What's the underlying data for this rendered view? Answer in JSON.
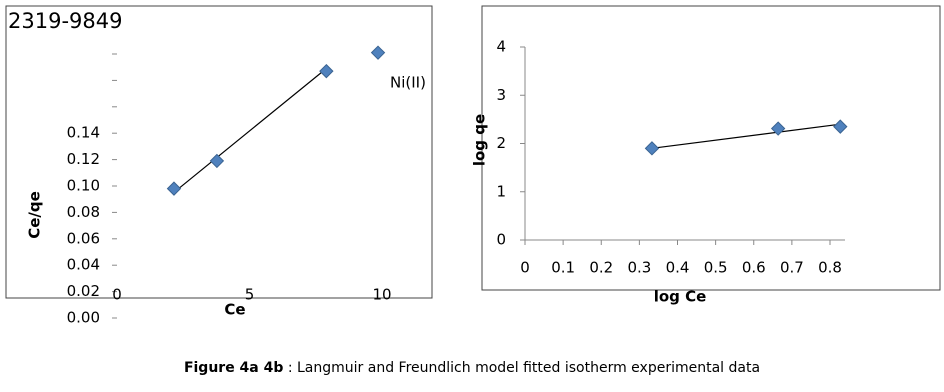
{
  "page": {
    "issn": "2319-9849",
    "caption_bold": "Figure 4a 4b",
    "caption": " : Langmuir  and Freundlich model fitted isotherm experimental data"
  },
  "chart_data": [
    {
      "type": "scatter",
      "x_label": "Ce",
      "y_label": "Ce/qe",
      "series": [
        {
          "name": "Ni(II)",
          "color": "#4f81bd",
          "x": [
            2.15,
            3.77,
            7.9,
            9.85
          ],
          "values": [
            0.098,
            0.119,
            0.187,
            0.201
          ]
        }
      ],
      "trendline": {
        "x": [
          2.2,
          7.9
        ],
        "values": [
          0.096,
          0.189
        ]
      },
      "xlim": [
        0,
        10
      ],
      "xticks": [
        0,
        5,
        10
      ],
      "ylim": [
        0,
        0.2
      ],
      "yticks": [
        {
          "value": 0,
          "label": "0.00"
        },
        {
          "value": 0.02,
          "label": "0.02"
        },
        {
          "value": 0.04,
          "label": "0.04"
        },
        {
          "value": 0.06,
          "label": "0.06"
        },
        {
          "value": 0.08,
          "label": "0.08"
        },
        {
          "value": 0.1,
          "label": "0.10"
        },
        {
          "value": 0.12,
          "label": "0.12"
        },
        {
          "value": 0.14,
          "label": "0.14"
        }
      ],
      "minor_yticks": [
        0.16,
        0.18,
        0.2
      ],
      "axis_lines": false
    },
    {
      "type": "scatter",
      "x_label": "log Ce",
      "y_label": "log qe",
      "series": [
        {
          "color": "#4f81bd",
          "x": [
            0.333,
            0.664,
            0.827
          ],
          "values": [
            1.9,
            2.31,
            2.35
          ]
        }
      ],
      "trendline": {
        "x": [
          0.333,
          0.827
        ],
        "values": [
          1.9,
          2.4
        ]
      },
      "xlim": [
        0,
        0.8
      ],
      "xticks": [
        0,
        0.1,
        0.2,
        0.3,
        0.4,
        0.5,
        0.6,
        0.7,
        0.8
      ],
      "ylim": [
        0,
        4
      ],
      "yticks": [
        0,
        1,
        2,
        3,
        4
      ],
      "axis_lines": true
    }
  ]
}
